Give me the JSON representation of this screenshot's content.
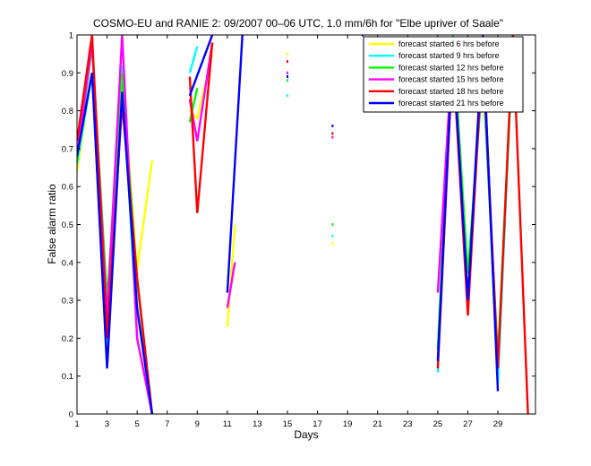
{
  "chart_data": {
    "type": "line",
    "title": "COSMO-EU and RANIE 2: 09/2007 00–06 UTC, 1.0 mm/6h for \"Elbe upriver of Saale\"",
    "xlabel": "Days",
    "ylabel": "False alarm ratio",
    "xlim": [
      1,
      31.5
    ],
    "ylim": [
      0,
      1
    ],
    "xticks": [
      1,
      3,
      5,
      7,
      9,
      11,
      13,
      15,
      17,
      19,
      21,
      23,
      25,
      27,
      29
    ],
    "yticks": [
      0,
      0.1,
      0.2,
      0.3,
      0.4,
      0.5,
      0.6,
      0.7,
      0.8,
      0.9,
      1
    ],
    "ytick_labels": [
      "0",
      "0.1",
      "0.2",
      "0.3",
      "0.4",
      "0.5",
      "0.6",
      "0.7",
      "0.8",
      "0.9",
      "1"
    ],
    "grid": false,
    "legend_position": "top-right",
    "series": [
      {
        "name": "forecast started 6 hrs before",
        "color": "#ffff00",
        "segments": [
          [
            [
              1,
              0.64
            ],
            [
              2,
              0.9
            ],
            [
              3,
              0.12
            ],
            [
              4,
              0.9
            ],
            [
              5,
              0.38
            ],
            [
              6,
              0.67
            ]
          ],
          [
            [
              8.5,
              0.8
            ],
            [
              9,
              0.78
            ],
            [
              10,
              0.95
            ]
          ],
          [
            [
              11,
              0.23
            ],
            [
              11.5,
              0.5
            ]
          ],
          [
            [
              25,
              0.13
            ],
            [
              26,
              0.95
            ],
            [
              27,
              0.28
            ],
            [
              28,
              0.95
            ],
            [
              29,
              0.1
            ],
            [
              30,
              0.98
            ]
          ]
        ],
        "points": [
          [
            15,
            0.95
          ],
          [
            18,
            0.45
          ],
          [
            18,
            0.74
          ]
        ]
      },
      {
        "name": "forecast started 9 hrs before",
        "color": "#00ffff",
        "segments": [
          [
            [
              1,
              0.66
            ],
            [
              2,
              0.9
            ],
            [
              3,
              0.15
            ],
            [
              4,
              0.92
            ],
            [
              5,
              0.2
            ],
            [
              6,
              0.0
            ]
          ],
          [
            [
              8.5,
              0.9
            ],
            [
              9,
              0.97
            ]
          ],
          [
            [
              25,
              0.11
            ],
            [
              26,
              0.96
            ],
            [
              27,
              0.3
            ],
            [
              28,
              0.96
            ],
            [
              29,
              0.08
            ],
            [
              30,
              0.98
            ]
          ]
        ],
        "points": [
          [
            15,
            0.84
          ],
          [
            18,
            0.47
          ],
          [
            18,
            0.74
          ]
        ]
      },
      {
        "name": "forecast started 12 hrs before",
        "color": "#00ff00",
        "segments": [
          [
            [
              1,
              0.67
            ],
            [
              2,
              0.97
            ],
            [
              3,
              0.3
            ],
            [
              4,
              0.9
            ],
            [
              5,
              0.35
            ],
            [
              6,
              0.0
            ]
          ],
          [
            [
              8.5,
              0.77
            ],
            [
              9,
              0.86
            ]
          ],
          [
            [
              25,
              0.17
            ],
            [
              26,
              1.0
            ],
            [
              27,
              0.37
            ],
            [
              28,
              0.9
            ],
            [
              29,
              0.15
            ],
            [
              30,
              0.97
            ]
          ]
        ],
        "points": [
          [
            15,
            0.88
          ],
          [
            18,
            0.5
          ]
        ]
      },
      {
        "name": "forecast started 15 hrs before",
        "color": "#ff00ff",
        "segments": [
          [
            [
              1,
              0.68
            ],
            [
              2,
              0.98
            ],
            [
              3,
              0.25
            ],
            [
              4,
              1.0
            ],
            [
              5,
              0.2
            ],
            [
              6,
              0.0
            ]
          ],
          [
            [
              8.5,
              0.83
            ],
            [
              9,
              0.72
            ],
            [
              10,
              0.98
            ]
          ],
          [
            [
              11,
              0.28
            ],
            [
              11.5,
              0.4
            ]
          ],
          [
            [
              25,
              0.32
            ],
            [
              26,
              0.97
            ],
            [
              27,
              0.3
            ],
            [
              28,
              0.95
            ],
            [
              29,
              0.12
            ]
          ]
        ],
        "points": [
          [
            15,
            0.9
          ],
          [
            18,
            0.73
          ]
        ]
      },
      {
        "name": "forecast started 18 hrs before",
        "color": "#ff0000",
        "segments": [
          [
            [
              1,
              0.72
            ],
            [
              2,
              1.0
            ],
            [
              3,
              0.2
            ],
            [
              4,
              0.82
            ],
            [
              5,
              0.36
            ],
            [
              6,
              0.0
            ]
          ],
          [
            [
              8.5,
              0.89
            ],
            [
              9,
              0.53
            ],
            [
              10,
              0.98
            ]
          ],
          [
            [
              25,
              0.12
            ],
            [
              26,
              0.95
            ],
            [
              27,
              0.26
            ],
            [
              28,
              0.97
            ],
            [
              29,
              0.12
            ],
            [
              30,
              1.0
            ],
            [
              31,
              0.0
            ]
          ]
        ],
        "points": [
          [
            15,
            0.93
          ],
          [
            18,
            0.74
          ]
        ]
      },
      {
        "name": "forecast started 21 hrs before",
        "color": "#0000ff",
        "segments": [
          [
            [
              1,
              0.68
            ],
            [
              2,
              0.9
            ],
            [
              3,
              0.12
            ],
            [
              4,
              0.85
            ],
            [
              5,
              0.28
            ],
            [
              6,
              0.0
            ]
          ],
          [
            [
              8.5,
              0.84
            ],
            [
              10,
              1.0
            ]
          ],
          [
            [
              11,
              0.32
            ],
            [
              12,
              1.0
            ]
          ],
          [
            [
              25,
              0.14
            ],
            [
              26,
              0.97
            ],
            [
              27,
              0.3
            ],
            [
              28,
              1.0
            ],
            [
              29,
              0.06
            ]
          ]
        ],
        "points": [
          [
            15,
            0.89
          ],
          [
            18,
            0.76
          ],
          [
            20,
            1.0
          ]
        ]
      }
    ]
  }
}
